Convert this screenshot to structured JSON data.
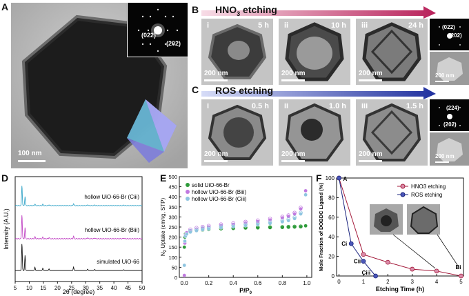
{
  "panel_labels": {
    "a": "A",
    "b": "B",
    "c": "C",
    "d": "D",
    "e": "E",
    "f": "F"
  },
  "colors": {
    "hno3_arrow": "#b8215a",
    "ros_arrow": "#1f2f9e",
    "hno3_series": "#a31a3a",
    "ros_series": "#1a237e",
    "d_top": "#3aa7c9",
    "d_mid": "#c146c4",
    "d_bot": "#111111",
    "e_solid": "#2e9b3a",
    "e_biii": "#c079e0",
    "e_ciii": "#8fc5e0"
  },
  "panelA": {
    "scalebar": "100 nm",
    "saed_1": "(022)",
    "saed_2": "(202)"
  },
  "panelB": {
    "title_prefix": "HNO",
    "title_sub": "3",
    "title_suffix": " etching",
    "frames": [
      {
        "roman": "i",
        "time": "5 h",
        "scalebar": "200 nm"
      },
      {
        "roman": "ii",
        "time": "10 h",
        "scalebar": "200 nm"
      },
      {
        "roman": "iii",
        "time": "24 h",
        "scalebar": "200 nm"
      }
    ],
    "saed_1": "(022)",
    "saed_2": "(202)",
    "side_scalebar": "200 nm"
  },
  "panelC": {
    "title": "ROS etching",
    "frames": [
      {
        "roman": "i",
        "time": "0.5 h",
        "scalebar": "200 nm"
      },
      {
        "roman": "ii",
        "time": "1.0 h",
        "scalebar": "200 nm"
      },
      {
        "roman": "iii",
        "time": "1.5 h",
        "scalebar": "200 nm"
      }
    ],
    "saed_1": "(224)",
    "saed_2": "(202)",
    "side_scalebar": "200 nm"
  },
  "chart_data": [
    {
      "panel": "D",
      "type": "line",
      "xlabel": "2θ (degree)",
      "ylabel": "Intensity (A.U.)",
      "xlim": [
        5,
        50
      ],
      "xticks": [
        5,
        10,
        15,
        20,
        25,
        30,
        35,
        40,
        45,
        50
      ],
      "series": [
        {
          "name": "hollow UiO-66-Br (Ciii)",
          "peaks": [
            [
              7.4,
              1.0
            ],
            [
              8.5,
              0.45
            ],
            [
              12.0,
              0.08
            ],
            [
              14.8,
              0.06
            ],
            [
              17.0,
              0.05
            ],
            [
              25.7,
              0.1
            ],
            [
              30.7,
              0.05
            ],
            [
              33.2,
              0.04
            ],
            [
              43.5,
              0.03
            ]
          ]
        },
        {
          "name": "hollow UiO-66-Br (Biii)",
          "peaks": [
            [
              7.4,
              1.0
            ],
            [
              8.5,
              0.45
            ],
            [
              12.0,
              0.08
            ],
            [
              14.8,
              0.06
            ],
            [
              17.0,
              0.05
            ],
            [
              25.7,
              0.1
            ],
            [
              30.7,
              0.05
            ],
            [
              33.2,
              0.04
            ],
            [
              43.5,
              0.03
            ]
          ]
        },
        {
          "name": "simulated UiO-66",
          "peaks": [
            [
              7.4,
              1.0
            ],
            [
              8.5,
              0.55
            ],
            [
              12.0,
              0.12
            ],
            [
              14.8,
              0.08
            ],
            [
              17.0,
              0.06
            ],
            [
              25.7,
              0.12
            ],
            [
              30.7,
              0.05
            ],
            [
              33.2,
              0.04
            ],
            [
              43.5,
              0.03
            ]
          ]
        }
      ]
    },
    {
      "panel": "E",
      "type": "scatter",
      "xlabel_main": "P/P",
      "xlabel_sub": "0",
      "ylabel_main": "N",
      "ylabel_sub": "2",
      "ylabel_rest": " Uptake (cm³/g, STP)",
      "xlim": [
        0,
        1.0
      ],
      "ylim": [
        0,
        500
      ],
      "xticks": [
        0.0,
        0.2,
        0.4,
        0.6,
        0.8,
        1.0
      ],
      "yticks": [
        0,
        50,
        100,
        150,
        200,
        250,
        300,
        350,
        400,
        450,
        500
      ],
      "series": [
        {
          "name": "solid UiO-66-Br",
          "x": [
            0.001,
            0.005,
            0.01,
            0.02,
            0.05,
            0.1,
            0.15,
            0.2,
            0.3,
            0.4,
            0.5,
            0.6,
            0.7,
            0.8,
            0.85,
            0.9,
            0.95,
            0.99
          ],
          "y": [
            150,
            200,
            215,
            222,
            228,
            232,
            235,
            238,
            241,
            243,
            245,
            246,
            247,
            248,
            249,
            250,
            251,
            256
          ]
        },
        {
          "name": "hollow UiO-66-Br (Biii)",
          "x": [
            0.001,
            0.005,
            0.01,
            0.02,
            0.05,
            0.1,
            0.15,
            0.2,
            0.3,
            0.4,
            0.5,
            0.6,
            0.7,
            0.8,
            0.85,
            0.9,
            0.95,
            0.99
          ],
          "y": [
            10,
            170,
            210,
            222,
            232,
            240,
            245,
            250,
            257,
            263,
            270,
            277,
            285,
            295,
            302,
            315,
            340,
            430
          ]
        },
        {
          "name": "hollow UiO-66-Br (Ciii)",
          "x": [
            0.001,
            0.005,
            0.01,
            0.02,
            0.05,
            0.1,
            0.15,
            0.2,
            0.3,
            0.4,
            0.5,
            0.6,
            0.7,
            0.8,
            0.85,
            0.9,
            0.95,
            0.99
          ],
          "y": [
            60,
            180,
            205,
            215,
            225,
            232,
            237,
            241,
            247,
            252,
            257,
            262,
            268,
            276,
            282,
            292,
            315,
            410
          ]
        }
      ]
    },
    {
      "panel": "F",
      "type": "line",
      "xlabel": "Etching Time (h)",
      "ylabel": "Mole Fraction of DOBDC Ligand (%)",
      "xlim": [
        0,
        5
      ],
      "ylim": [
        0,
        100
      ],
      "xticks": [
        0,
        1,
        2,
        3,
        4,
        5
      ],
      "yticks": [
        0,
        20,
        40,
        60,
        80,
        100
      ],
      "series": [
        {
          "name": "HNO3 etching",
          "x": [
            0,
            1,
            2,
            3,
            4,
            5
          ],
          "y": [
            100,
            22,
            14,
            7,
            5,
            0
          ]
        },
        {
          "name": "ROS etching",
          "x": [
            0,
            0.5,
            1.0,
            1.5
          ],
          "y": [
            100,
            33,
            15,
            0
          ]
        }
      ],
      "annotations": [
        "A",
        "Ci",
        "Cii",
        "Ciii",
        "Bi"
      ]
    }
  ]
}
